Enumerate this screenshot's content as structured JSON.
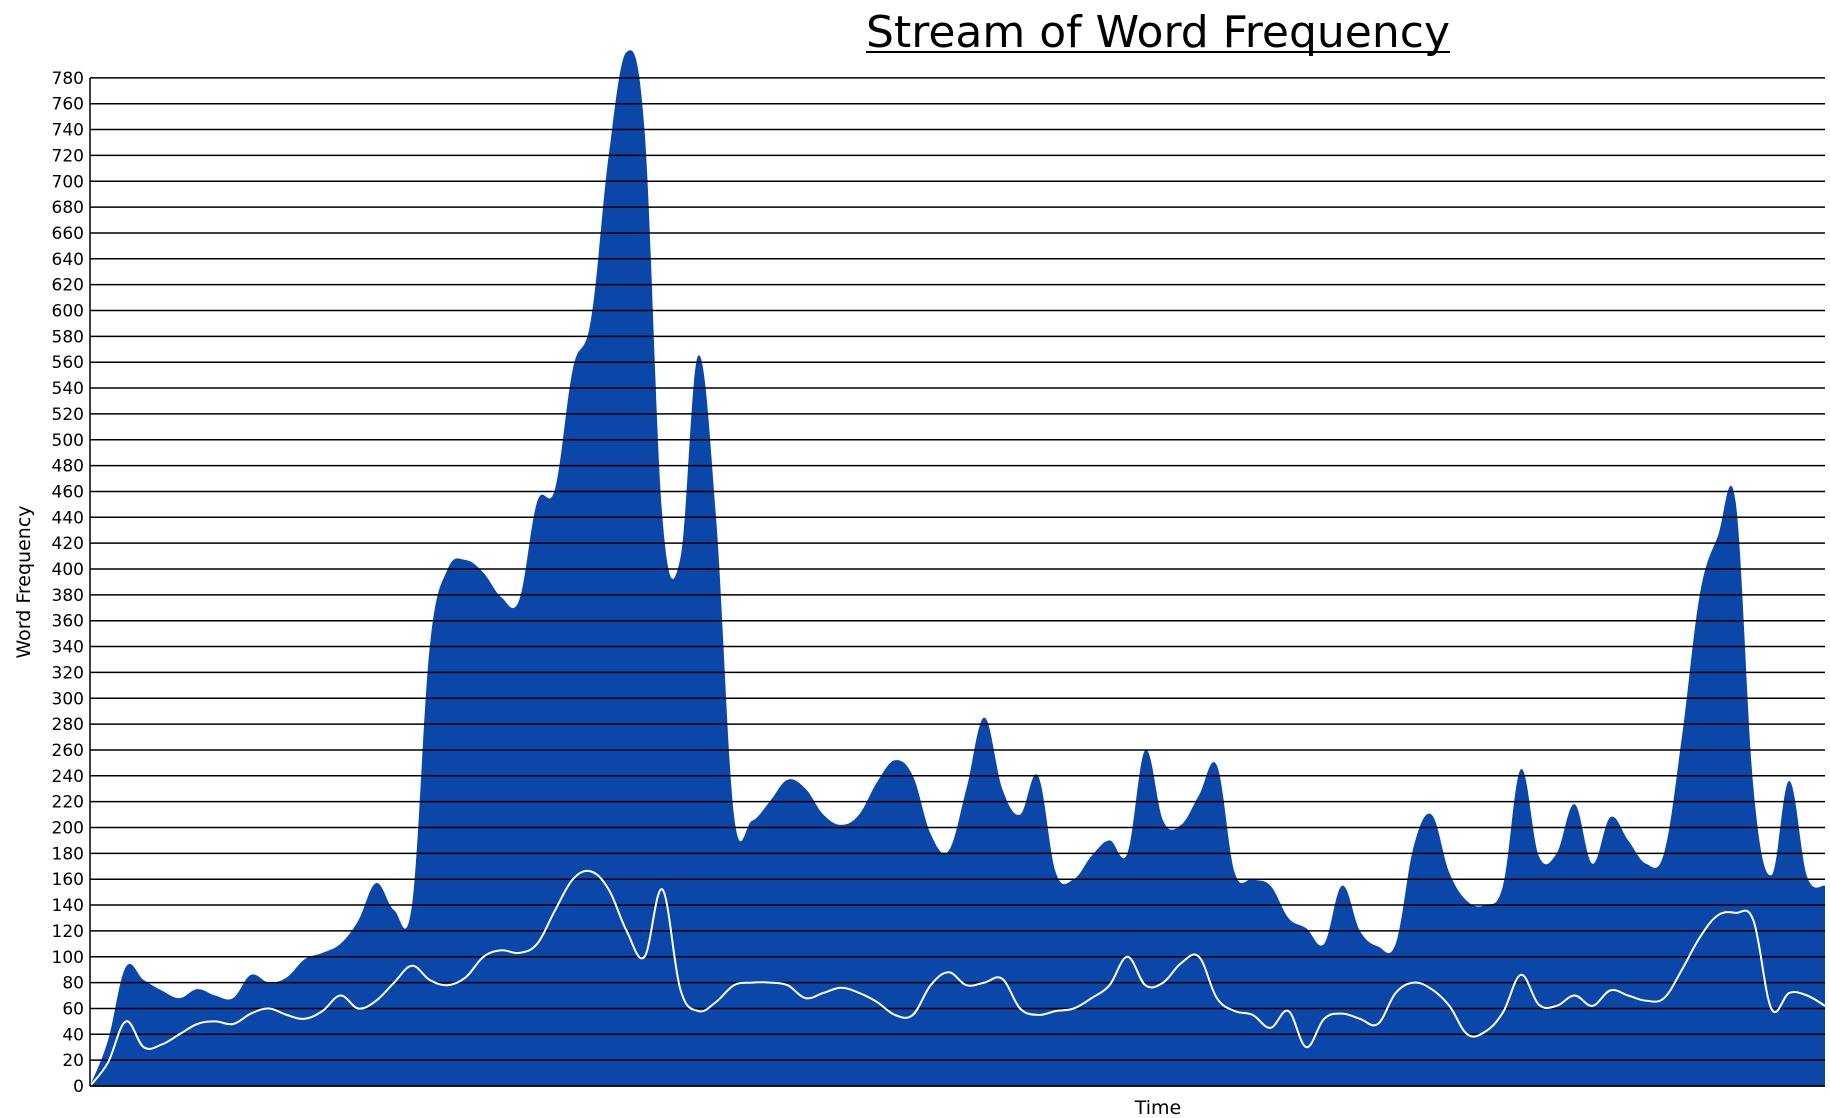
{
  "chart_data": {
    "type": "area",
    "title": "Stream of Word Frequency",
    "xlabel": "Time",
    "ylabel": "Word Frequency",
    "ylim": [
      0,
      800
    ],
    "yticks": [
      0,
      20,
      40,
      60,
      80,
      100,
      120,
      140,
      160,
      180,
      200,
      220,
      240,
      260,
      280,
      300,
      320,
      340,
      360,
      380,
      400,
      420,
      440,
      460,
      480,
      500,
      520,
      540,
      560,
      580,
      600,
      620,
      640,
      660,
      680,
      700,
      720,
      740,
      760,
      780
    ],
    "ytick_labels": [
      "0",
      "20",
      "40",
      "60",
      "80",
      "100",
      "120",
      "140",
      "160",
      "180",
      "200",
      "220",
      "240",
      "260",
      "280",
      "300",
      "320",
      "340",
      "360",
      "380",
      "400",
      "420",
      "440",
      "460",
      "480",
      "500",
      "520",
      "540",
      "560",
      "580",
      "600",
      "620",
      "640",
      "660",
      "680",
      "700",
      "720",
      "740",
      "760",
      "780"
    ],
    "grid": true,
    "colors": {
      "area": "#0b47a8",
      "line": "#ffffff",
      "grid": "#000000"
    },
    "series": [
      {
        "values": [
          0,
          35,
          92,
          82,
          74,
          68,
          75,
          70,
          68,
          86,
          80,
          84,
          98,
          103,
          110,
          128,
          157,
          136,
          140,
          340,
          400,
          407,
          397,
          378,
          376,
          452,
          462,
          555,
          592,
          720,
          800,
          740,
          440,
          408,
          565,
          440,
          210,
          205,
          220,
          237,
          230,
          210,
          202,
          210,
          235,
          252,
          240,
          195,
          182,
          230,
          285,
          230,
          210,
          240,
          165,
          160,
          178,
          190,
          180,
          260,
          205,
          202,
          225,
          248,
          165,
          160,
          155,
          130,
          122,
          110,
          155,
          120,
          108,
          110,
          185,
          210,
          165,
          143,
          140,
          155,
          245,
          178,
          180,
          218,
          172,
          208,
          190,
          172,
          180,
          270,
          380,
          425,
          452,
          230,
          163,
          236,
          162,
          155
        ]
      },
      {
        "values": [
          0,
          18,
          50,
          30,
          32,
          40,
          48,
          50,
          48,
          56,
          60,
          55,
          52,
          58,
          70,
          60,
          66,
          80,
          93,
          82,
          78,
          84,
          100,
          105,
          103,
          110,
          136,
          160,
          166,
          152,
          120,
          100,
          152,
          75,
          58,
          65,
          78,
          80,
          80,
          78,
          68,
          72,
          76,
          72,
          65,
          55,
          55,
          78,
          88,
          78,
          80,
          83,
          60,
          55,
          58,
          60,
          68,
          78,
          100,
          78,
          80,
          95,
          100,
          68,
          58,
          55,
          45,
          58,
          30,
          52,
          56,
          52,
          48,
          72,
          80,
          75,
          62,
          40,
          42,
          57,
          86,
          63,
          62,
          70,
          62,
          74,
          70,
          66,
          68,
          90,
          115,
          132,
          134,
          128,
          60,
          72,
          70,
          62
        ]
      }
    ]
  }
}
